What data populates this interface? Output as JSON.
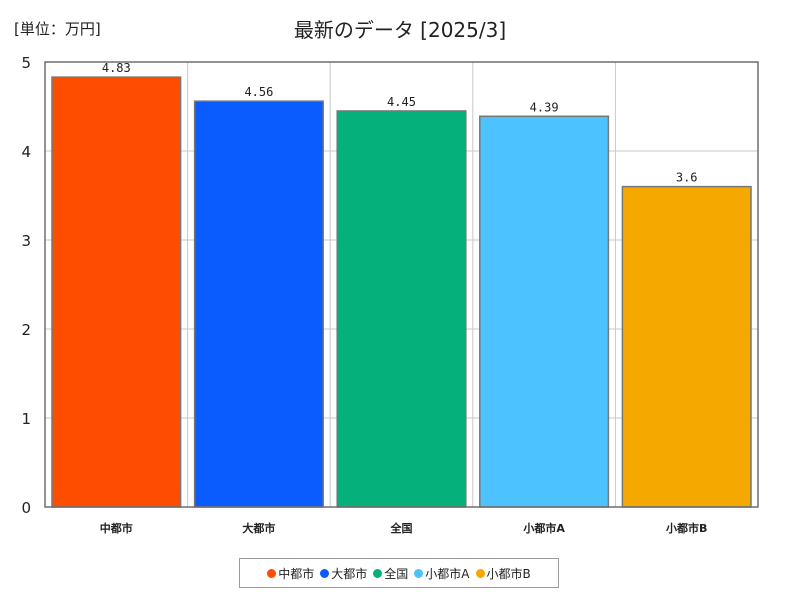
{
  "unit_label": "[単位：万円]",
  "chart_data": {
    "type": "bar",
    "title": "最新のデータ [2025/3]",
    "categories": [
      "中都市",
      "大都市",
      "全国",
      "小都市A",
      "小都市B"
    ],
    "values": [
      4.83,
      4.56,
      4.45,
      4.39,
      3.6
    ],
    "value_labels": [
      "4.83",
      "4.56",
      "4.45",
      "4.39",
      "3.6"
    ],
    "colors": [
      "#ff4d00",
      "#0a5cff",
      "#05b07b",
      "#4cc3ff",
      "#f5a800"
    ],
    "ylim": [
      0,
      5
    ],
    "yticks": [
      "0",
      "1",
      "2",
      "3",
      "4",
      "5"
    ],
    "xlabel": "",
    "ylabel": "",
    "grid": true,
    "legend_position": "bottom"
  }
}
